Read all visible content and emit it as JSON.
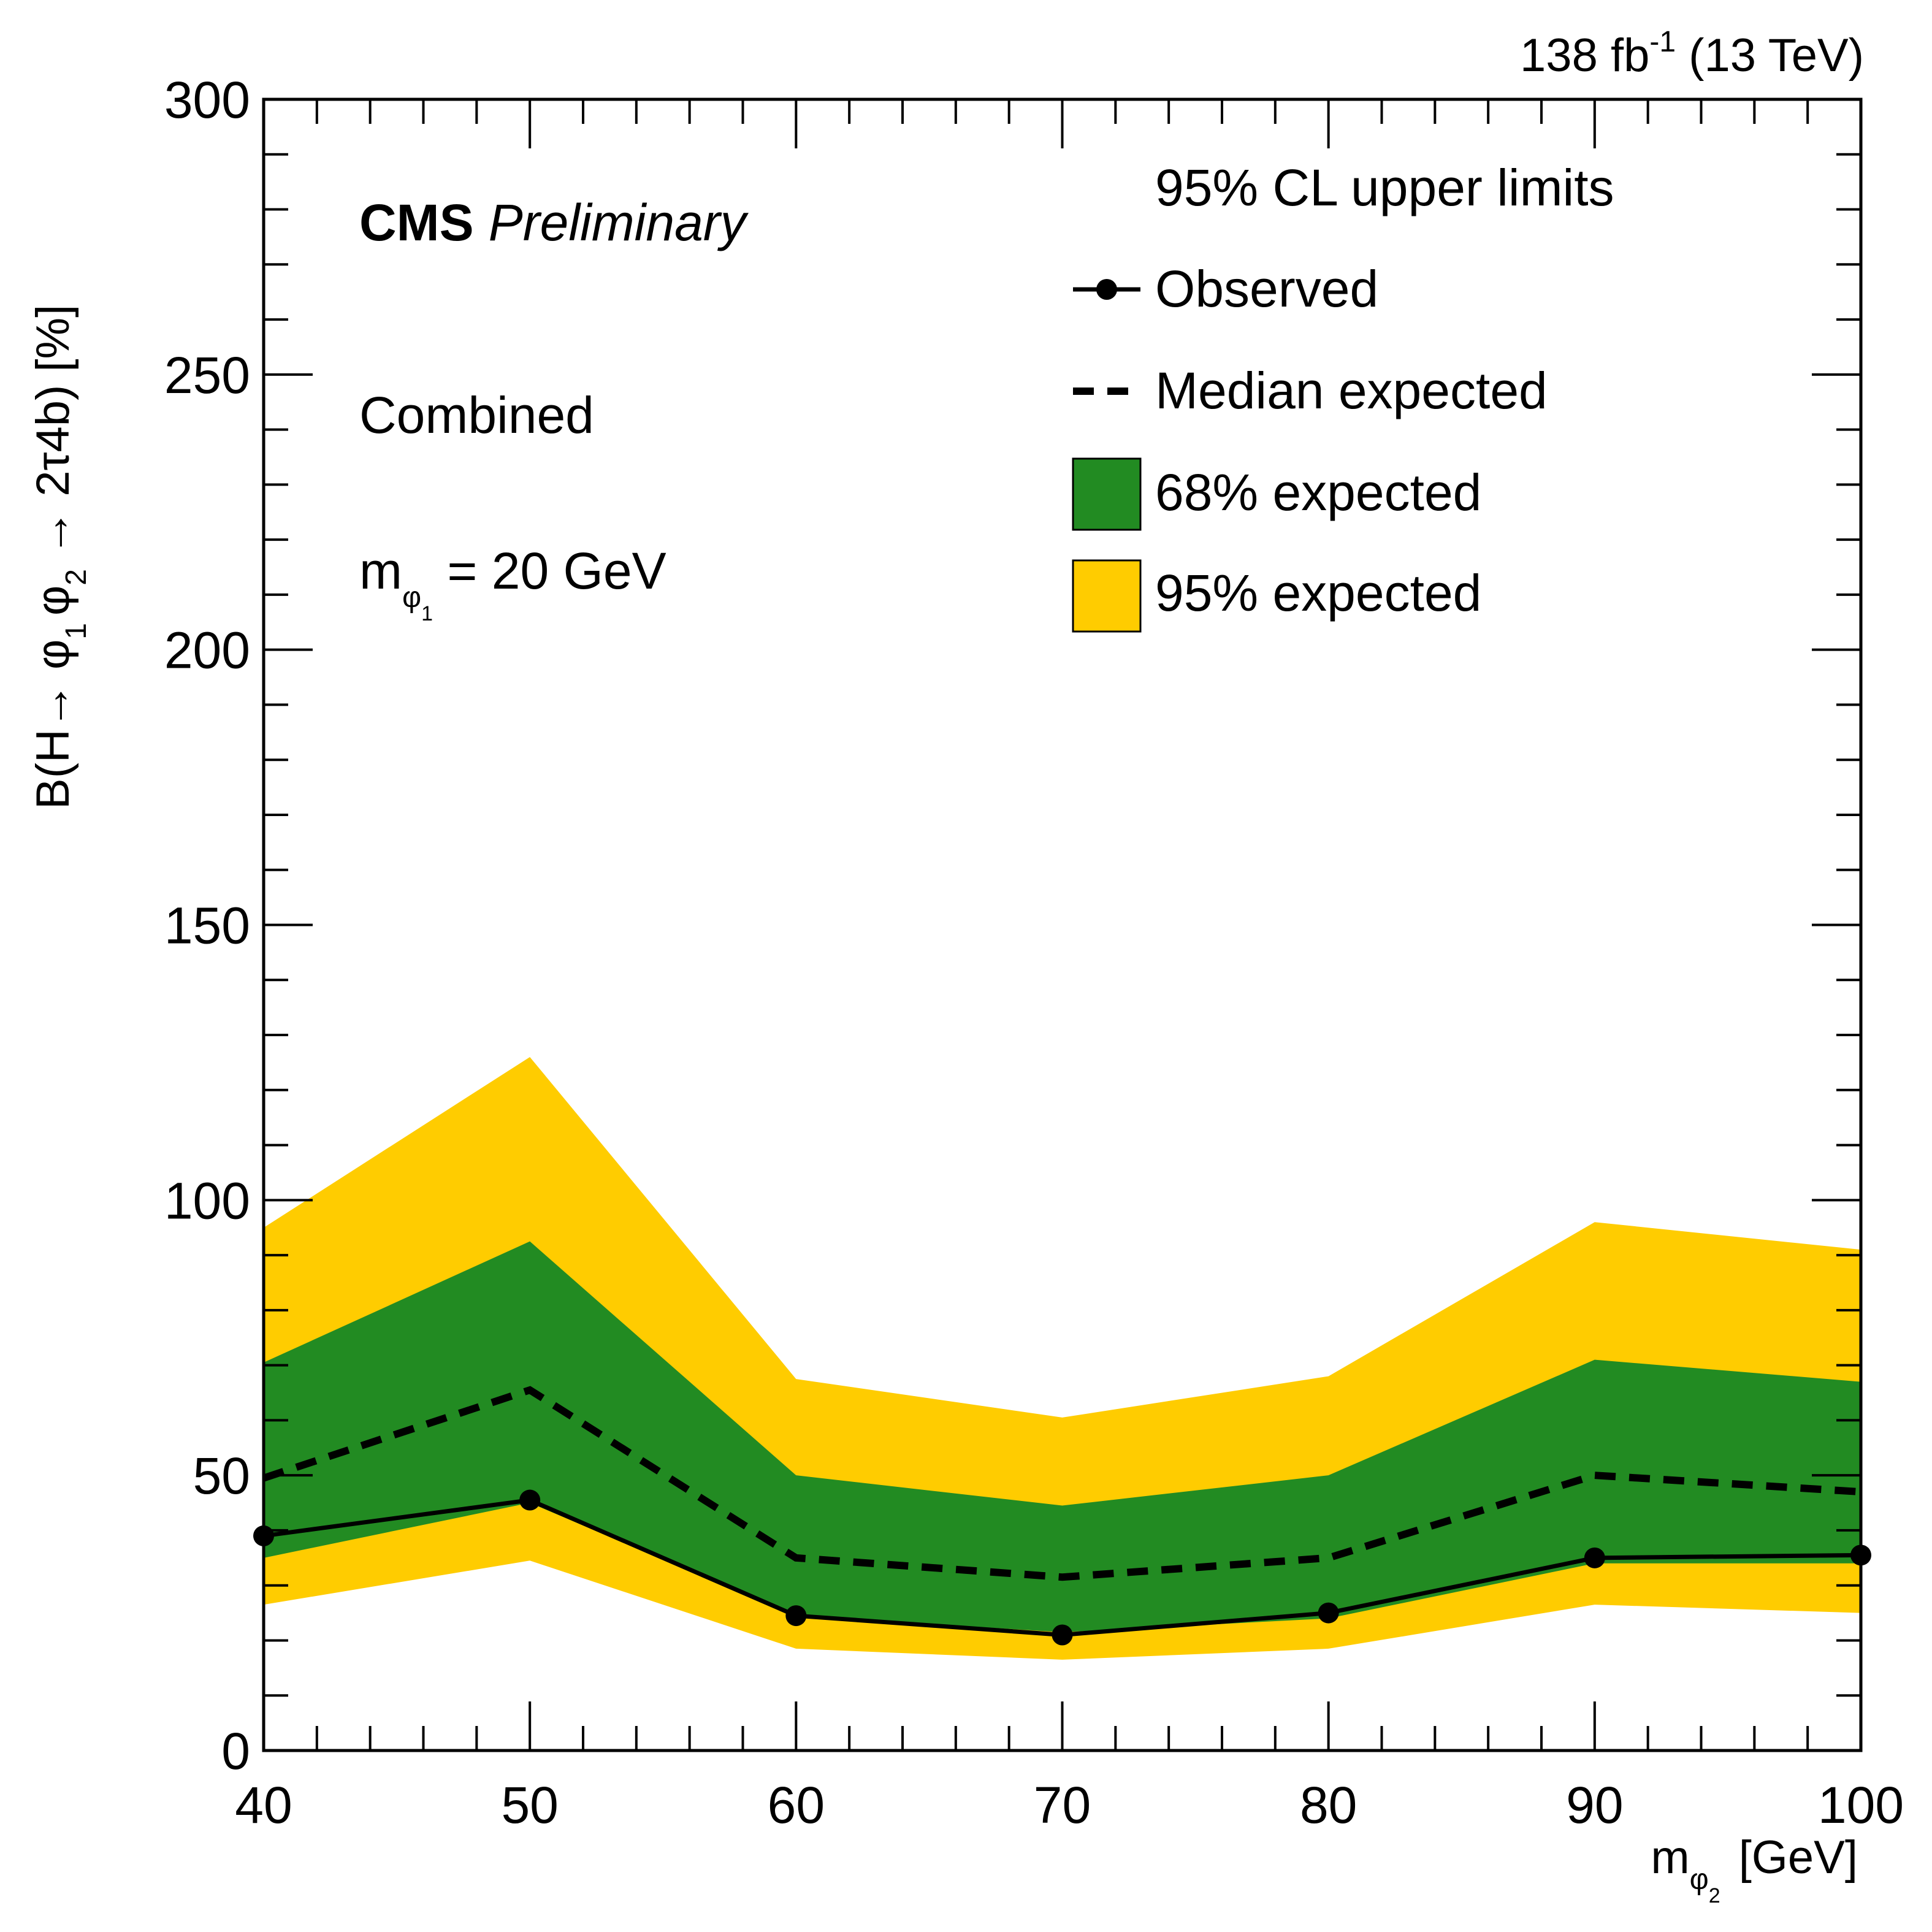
{
  "chart_data": {
    "type": "line",
    "title": "",
    "experiment": "CMS",
    "status": "Preliminary",
    "lumi_label": {
      "value": "138 fb",
      "exponent": "-1",
      "energy": " (13 TeV)"
    },
    "xlabel": {
      "main": "m",
      "sub": "φ",
      "subsub": "2",
      "unit": "[GeV]"
    },
    "ylabel": {
      "parts": [
        "B(H→ φ",
        "φ",
        " → 2τ4b) [%]"
      ],
      "subs": [
        "1",
        "2"
      ]
    },
    "xlim": [
      40,
      100
    ],
    "ylim": [
      0,
      300
    ],
    "xticks": [
      40,
      50,
      60,
      70,
      80,
      90,
      100
    ],
    "yticks": [
      0,
      50,
      100,
      150,
      200,
      250,
      300
    ],
    "x": [
      40,
      50,
      60,
      70,
      80,
      90,
      100
    ],
    "series": [
      {
        "name": "Observed",
        "values": [
          39,
          45.5,
          24.5,
          21,
          25,
          35,
          35.5
        ]
      },
      {
        "name": "Median expected",
        "values": [
          49.5,
          65.5,
          35,
          31.5,
          35,
          50,
          47
        ]
      },
      {
        "name": "68% expected",
        "lower": [
          35,
          45,
          24.5,
          21.5,
          24,
          34,
          34
        ],
        "upper": [
          70.5,
          92.5,
          50,
          44.5,
          50,
          71,
          67
        ]
      },
      {
        "name": "95% expected",
        "lower": [
          26.5,
          34.5,
          18.5,
          16.5,
          18.5,
          26.5,
          25
        ],
        "upper": [
          95,
          126,
          67.5,
          60.5,
          68,
          96,
          91
        ]
      }
    ],
    "legend": {
      "header": "95% CL upper limits",
      "entries": [
        "Observed",
        "Median expected",
        "68% expected",
        "95% expected"
      ],
      "position": "top-right"
    },
    "annotations": {
      "combined": "Combined",
      "mass_label": {
        "main": "m",
        "sub": "φ",
        "subsub": "1",
        "rest": " = 20 GeV"
      }
    },
    "colors": {
      "band68": "#228b22",
      "band95": "#ffcc00",
      "line": "#000000"
    }
  }
}
